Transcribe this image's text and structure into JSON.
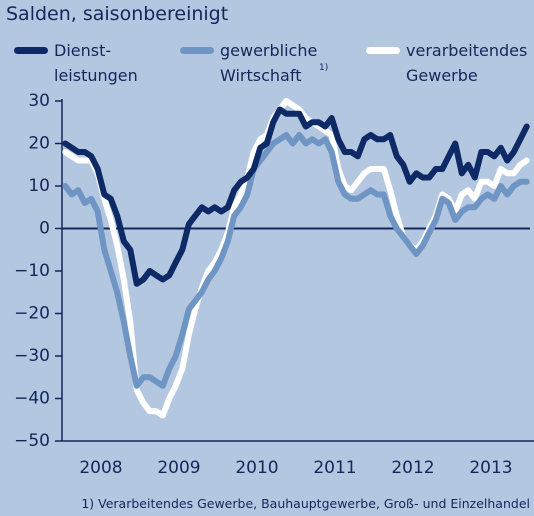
{
  "chart_data": {
    "type": "line",
    "title": "Salden, saisonbereinigt",
    "footnote": "1) Verarbeitendes Gewerbe, Bauhauptgewerbe, Groß- und Einzelhandel",
    "footnote_marker": "1)",
    "x": [
      2008.042,
      2008.125,
      2008.208,
      2008.292,
      2008.375,
      2008.458,
      2008.542,
      2008.625,
      2008.708,
      2008.792,
      2008.875,
      2008.958,
      2009.042,
      2009.125,
      2009.208,
      2009.292,
      2009.375,
      2009.458,
      2009.542,
      2009.625,
      2009.708,
      2009.792,
      2009.875,
      2009.958,
      2010.042,
      2010.125,
      2010.208,
      2010.292,
      2010.375,
      2010.458,
      2010.542,
      2010.625,
      2010.708,
      2010.792,
      2010.875,
      2010.958,
      2011.042,
      2011.125,
      2011.208,
      2011.292,
      2011.375,
      2011.458,
      2011.542,
      2011.625,
      2011.708,
      2011.792,
      2011.875,
      2011.958,
      2012.042,
      2012.125,
      2012.208,
      2012.292,
      2012.375,
      2012.458,
      2012.542,
      2012.625,
      2012.708,
      2012.792,
      2012.875,
      2012.958,
      2013.042,
      2013.125,
      2013.208,
      2013.292,
      2013.375,
      2013.458,
      2013.542,
      2013.625,
      2013.708,
      2013.792,
      2013.875,
      2013.958
    ],
    "xlim": [
      2008,
      2014
    ],
    "xticks": [
      {
        "value": 2008.5,
        "label": "2008"
      },
      {
        "value": 2009.5,
        "label": "2009"
      },
      {
        "value": 2010.5,
        "label": "2010"
      },
      {
        "value": 2011.5,
        "label": "2011"
      },
      {
        "value": 2012.5,
        "label": "2012"
      },
      {
        "value": 2013.5,
        "label": "2013"
      }
    ],
    "ylim": [
      -50,
      30
    ],
    "yticks": [
      {
        "value": -50,
        "label": "−50"
      },
      {
        "value": -40,
        "label": "−40"
      },
      {
        "value": -30,
        "label": "−30"
      },
      {
        "value": -20,
        "label": "−20"
      },
      {
        "value": -10,
        "label": "−10"
      },
      0,
      10,
      20,
      30
    ],
    "series": [
      {
        "name": "verarbeitendes\nGewerbe",
        "color": "#ffffff",
        "values": [
          18,
          17,
          16,
          16,
          16,
          13,
          7,
          2,
          -4,
          -12,
          -22,
          -38,
          -41,
          -43,
          -43,
          -44,
          -40,
          -37,
          -33,
          -25,
          -19,
          -14,
          -10,
          -8,
          -5,
          -1,
          5,
          8,
          12,
          18,
          21,
          22,
          26,
          28,
          30,
          29,
          28,
          26,
          25,
          24,
          23,
          22,
          14,
          10,
          9,
          11,
          13,
          14,
          14,
          14,
          9,
          3,
          -2,
          -4,
          -5,
          -3,
          0,
          3,
          8,
          7,
          4,
          8,
          9,
          7,
          11,
          11,
          10,
          14,
          13,
          13,
          15,
          16
        ]
      },
      {
        "name": "gewerbliche\nWirtschaft",
        "color": "#6f95c4",
        "values": [
          10,
          8,
          9,
          6,
          7,
          4,
          -5,
          -10,
          -15,
          -22,
          -30,
          -37,
          -35,
          -35,
          -36,
          -37,
          -33,
          -30,
          -25,
          -19,
          -17,
          -15,
          -12,
          -10,
          -7,
          -3,
          3,
          5,
          8,
          14,
          16,
          18,
          20,
          21,
          22,
          20,
          22,
          20,
          21,
          20,
          21,
          18,
          11,
          8,
          7,
          7,
          8,
          9,
          8,
          8,
          3,
          0,
          -2,
          -4,
          -6,
          -4,
          -1,
          2,
          7,
          6,
          2,
          4,
          5,
          5,
          7,
          8,
          7,
          10,
          8,
          10,
          11,
          11
        ]
      },
      {
        "name": "Dienst-\nleistungen",
        "color": "#0d2a66",
        "values": [
          20,
          19,
          18,
          18,
          17,
          14,
          8,
          7,
          3,
          -3,
          -5,
          -13,
          -12,
          -10,
          -11,
          -12,
          -11,
          -8,
          -5,
          1,
          3,
          5,
          4,
          5,
          4,
          5,
          9,
          11,
          12,
          14,
          19,
          20,
          25,
          28,
          27,
          27,
          27,
          24,
          25,
          25,
          24,
          26,
          21,
          18,
          18,
          17,
          21,
          22,
          21,
          21,
          22,
          17,
          15,
          11,
          13,
          12,
          12,
          14,
          14,
          17,
          20,
          13,
          15,
          12,
          18,
          18,
          17,
          19,
          16,
          18,
          21,
          24
        ]
      }
    ]
  }
}
